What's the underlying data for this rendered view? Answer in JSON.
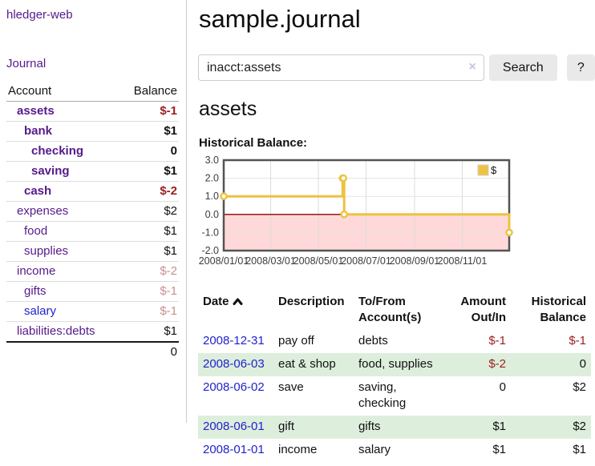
{
  "colors": {
    "link_purple": "#551a8b",
    "link_blue": "#2222cc",
    "negative": "#9d1d1d",
    "negative_faded": "#c98f8f",
    "row_stripe_green": "#ddeedd",
    "chart_line_gold": "#edc240",
    "chart_negative_fill": "#ffd9d9",
    "chart_zero_line": "#8b0000",
    "chart_border": "#545454",
    "button_gray": "#e9e9e9"
  },
  "sidebar": {
    "app_title": "hledger-web",
    "journal_link": "Journal",
    "accounts_table": {
      "col_account": "Account",
      "col_balance": "Balance",
      "rows": [
        {
          "name": "assets",
          "depth": 1,
          "bold": true,
          "balance": "$-1",
          "bclass": "neg"
        },
        {
          "name": "bank",
          "depth": 2,
          "bold": true,
          "balance": "$1",
          "bclass": ""
        },
        {
          "name": "checking",
          "depth": 3,
          "bold": true,
          "balance": "0",
          "bclass": ""
        },
        {
          "name": "saving",
          "depth": 3,
          "bold": true,
          "balance": "$1",
          "bclass": ""
        },
        {
          "name": "cash",
          "depth": 2,
          "bold": true,
          "balance": "$-2",
          "bclass": "neg"
        },
        {
          "name": "expenses",
          "depth": 1,
          "bold": false,
          "balance": "$2",
          "bclass": ""
        },
        {
          "name": "food",
          "depth": 2,
          "bold": false,
          "balance": "$1",
          "bclass": ""
        },
        {
          "name": "supplies",
          "depth": 2,
          "bold": false,
          "balance": "$1",
          "bclass": ""
        },
        {
          "name": "income",
          "depth": 1,
          "bold": false,
          "balance": "$-2",
          "bclass": "negfaded"
        },
        {
          "name": "gifts",
          "depth": 2,
          "bold": false,
          "balance": "$-1",
          "bclass": "negfaded"
        },
        {
          "name": "salary",
          "depth": 2,
          "bold": false,
          "balance": "$-1",
          "bclass": "negfaded",
          "unvisited": true
        },
        {
          "name": "liabilities:debts",
          "depth": 1,
          "bold": false,
          "balance": "$1",
          "bclass": ""
        }
      ],
      "total": "0"
    }
  },
  "main": {
    "title": "sample.journal",
    "search": {
      "value": "inacct:assets",
      "clear_icon": "×",
      "search_label": "Search",
      "help_label": "?"
    },
    "account_heading": "assets",
    "chart_heading": "Historical Balance:"
  },
  "chart_data": {
    "type": "line",
    "step": true,
    "title": "Historical Balance",
    "legend": [
      {
        "label": "$",
        "color": "#edc240"
      }
    ],
    "legend_position": "top-right",
    "grid": true,
    "x_dates": [
      "2008-01-01",
      "2008-06-01",
      "2008-06-02",
      "2008-06-03",
      "2008-12-31"
    ],
    "x_days": [
      0,
      152,
      153,
      154,
      365
    ],
    "series": [
      {
        "name": "$",
        "values": [
          1,
          2,
          2,
          0,
          -1
        ]
      }
    ],
    "xlim_days": [
      0,
      365
    ],
    "ylim": [
      -2,
      3
    ],
    "ytick_labels": [
      "3.0",
      "2.0",
      "1.0",
      "0.0",
      "-1.0",
      "-2.0"
    ],
    "yticks": [
      3,
      2,
      1,
      0,
      -1,
      -2
    ],
    "xticks": [
      {
        "label": "2008/01/01",
        "day": 0
      },
      {
        "label": "2008/03/01",
        "day": 60
      },
      {
        "label": "2008/05/01",
        "day": 121
      },
      {
        "label": "2008/07/01",
        "day": 182
      },
      {
        "label": "2008/09/01",
        "day": 244
      },
      {
        "label": "2008/11/01",
        "day": 305
      }
    ]
  },
  "transactions": {
    "col_date": "Date",
    "col_description": "Description",
    "col_accounts": "To/From Account(s)",
    "col_amount": "Amount Out/In",
    "col_balance": "Historical Balance",
    "rows": [
      {
        "date": "2008-12-31",
        "description": "pay off",
        "accounts": "debts",
        "amount": "$-1",
        "amount_neg": true,
        "balance": "$-1",
        "balance_neg": true
      },
      {
        "date": "2008-06-03",
        "description": "eat & shop",
        "accounts": "food, supplies",
        "amount": "$-2",
        "amount_neg": true,
        "balance": "0",
        "balance_neg": false
      },
      {
        "date": "2008-06-02",
        "description": "save",
        "accounts": "saving, checking",
        "amount": "0",
        "amount_neg": false,
        "balance": "$2",
        "balance_neg": false
      },
      {
        "date": "2008-06-01",
        "description": "gift",
        "accounts": "gifts",
        "amount": "$1",
        "amount_neg": false,
        "balance": "$2",
        "balance_neg": false
      },
      {
        "date": "2008-01-01",
        "description": "income",
        "accounts": "salary",
        "amount": "$1",
        "amount_neg": false,
        "balance": "$1",
        "balance_neg": false
      }
    ]
  }
}
